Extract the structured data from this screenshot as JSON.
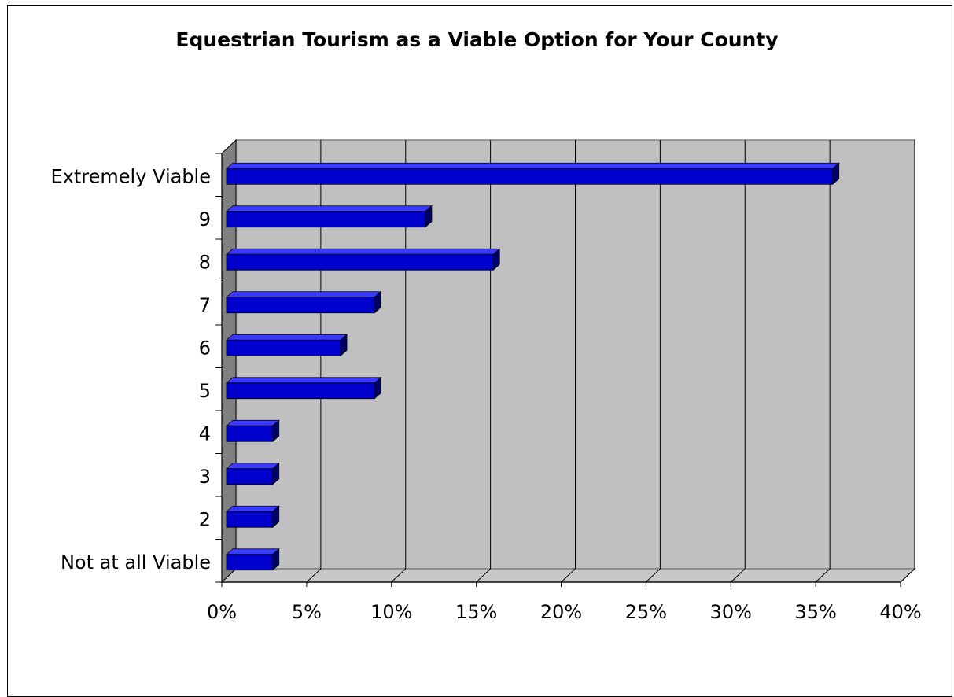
{
  "chart_data": {
    "type": "bar",
    "orientation": "horizontal",
    "title": "Equestrian Tourism as a Viable Option for Your County",
    "xlabel": "",
    "ylabel": "",
    "categories": [
      "Extremely Viable",
      "9",
      "8",
      "7",
      "6",
      "5",
      "4",
      "3",
      "2",
      "Not at all Viable"
    ],
    "values": [
      36,
      12,
      16,
      9,
      7,
      9,
      3,
      3,
      3,
      3
    ],
    "xlim": [
      0,
      40
    ],
    "x_ticks": [
      "0%",
      "5%",
      "10%",
      "15%",
      "20%",
      "25%",
      "30%",
      "35%",
      "40%"
    ],
    "grid": true,
    "legend": "none",
    "style": "3d",
    "colors": {
      "bar_face": "#0000cc",
      "bar_top": "#3a3aff",
      "bar_side": "#000066",
      "plot_back": "#c0c0c0",
      "plot_wall": "#808080",
      "plot_floor": "#c8c8c8"
    }
  }
}
